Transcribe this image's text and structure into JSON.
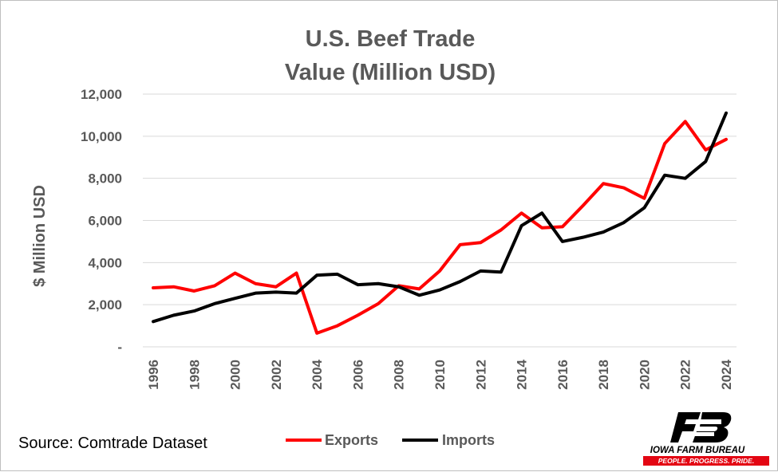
{
  "chart_data": {
    "type": "line",
    "title_lines": [
      "U.S. Beef Trade",
      "Value (Million USD)"
    ],
    "ylabel": "$ Million USD",
    "xlabel": "",
    "ylim": [
      0,
      12000
    ],
    "y_ticks": [
      0,
      2000,
      4000,
      6000,
      8000,
      10000,
      12000
    ],
    "y_tick_labels": [
      "-",
      "2,000",
      "4,000",
      "6,000",
      "8,000",
      "10,000",
      "12,000"
    ],
    "grid": "horizontal",
    "legend_position": "bottom",
    "x": [
      1996,
      1997,
      1998,
      1999,
      2000,
      2001,
      2002,
      2003,
      2004,
      2005,
      2006,
      2007,
      2008,
      2009,
      2010,
      2011,
      2012,
      2013,
      2014,
      2015,
      2016,
      2017,
      2018,
      2019,
      2020,
      2021,
      2022,
      2023,
      2024
    ],
    "x_tick_labels": [
      "1996",
      "1998",
      "2000",
      "2002",
      "2004",
      "2006",
      "2008",
      "2010",
      "2012",
      "2014",
      "2016",
      "2018",
      "2020",
      "2022",
      "2024"
    ],
    "series": [
      {
        "name": "Exports",
        "color": "#ff0000",
        "values": [
          2800,
          2850,
          2650,
          2900,
          3500,
          3000,
          2850,
          3500,
          650,
          1000,
          1500,
          2050,
          2900,
          2750,
          3600,
          4850,
          4950,
          5550,
          6350,
          5650,
          5700,
          6700,
          7750,
          7550,
          7050,
          9650,
          10700,
          9350,
          9850
        ]
      },
      {
        "name": "Imports",
        "color": "#000000",
        "values": [
          1200,
          1500,
          1700,
          2050,
          2300,
          2550,
          2600,
          2550,
          3400,
          3450,
          2950,
          3000,
          2850,
          2450,
          2700,
          3100,
          3600,
          3550,
          5750,
          6350,
          5000,
          5200,
          5450,
          5900,
          6600,
          8150,
          8000,
          8800,
          11100
        ]
      }
    ]
  },
  "source_text": "Source: Comtrade Dataset",
  "logo": {
    "name": "IOWA FARM BUREAU",
    "tagline": "PEOPLE. PROGRESS. PRIDE."
  }
}
